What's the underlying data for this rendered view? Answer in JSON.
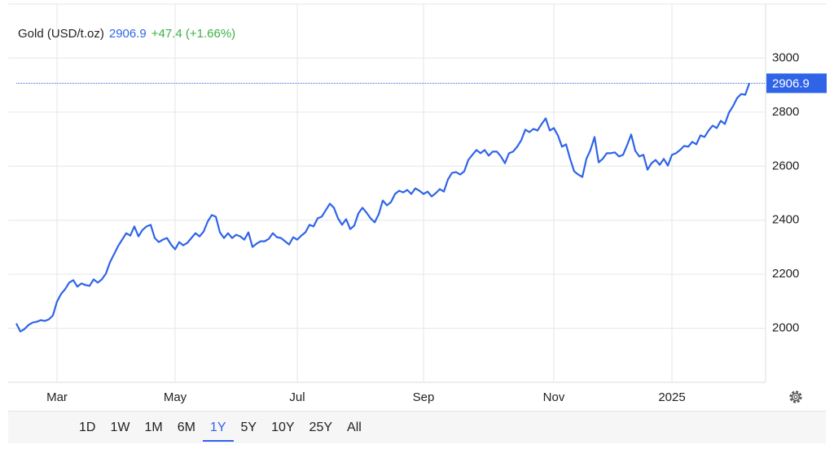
{
  "chart_data": {
    "type": "line",
    "title": "Gold (USD/t.oz)",
    "change": "+47.4 (+1.66%)",
    "color": "#2f64e8",
    "change_color": "#3cb043",
    "categories": [
      null,
      null,
      null,
      null,
      null,
      null,
      null,
      null,
      null,
      null,
      "Mar",
      null,
      null,
      null,
      null,
      null,
      null,
      null,
      null,
      null,
      null,
      null,
      null,
      null,
      null,
      null,
      null,
      null,
      null,
      null,
      null,
      null,
      null,
      null,
      null,
      null,
      null,
      null,
      null,
      "May",
      null,
      null,
      null,
      null,
      null,
      null,
      null,
      null,
      null,
      null,
      null,
      null,
      null,
      null,
      null,
      null,
      null,
      null,
      null,
      null,
      null,
      null,
      null,
      null,
      null,
      null,
      null,
      null,
      null,
      "Jul",
      null,
      null,
      null,
      null,
      null,
      null,
      null,
      null,
      null,
      null,
      null,
      null,
      null,
      null,
      null,
      null,
      null,
      null,
      null,
      null,
      null,
      null,
      null,
      null,
      null,
      null,
      null,
      null,
      null,
      null,
      "Sep",
      null,
      null,
      null,
      null,
      null,
      null,
      null,
      null,
      null,
      null,
      null,
      null,
      null,
      null,
      null,
      null,
      null,
      null,
      null,
      null,
      null,
      null,
      null,
      null,
      null,
      null,
      null,
      null,
      null,
      null,
      null,
      "Nov",
      null,
      null,
      null,
      null,
      null,
      null,
      null,
      null,
      null,
      null,
      null,
      null,
      null,
      null,
      null,
      null,
      null,
      null,
      null,
      null,
      null,
      null,
      null,
      null,
      null,
      null,
      null,
      null,
      "2025",
      null,
      null,
      null,
      null,
      null,
      null,
      null,
      null,
      null,
      null,
      null,
      null,
      null,
      null,
      null,
      null,
      null,
      null,
      null
    ],
    "values": [
      2018,
      1988,
      1997,
      2012,
      2021,
      2024,
      2030,
      2027,
      2033,
      2048,
      2099,
      2127,
      2145,
      2169,
      2178,
      2154,
      2166,
      2160,
      2157,
      2181,
      2169,
      2181,
      2202,
      2244,
      2274,
      2304,
      2328,
      2352,
      2343,
      2377,
      2340,
      2364,
      2377,
      2383,
      2334,
      2319,
      2328,
      2334,
      2310,
      2292,
      2319,
      2307,
      2316,
      2334,
      2352,
      2340,
      2358,
      2395,
      2419,
      2413,
      2355,
      2334,
      2352,
      2334,
      2346,
      2340,
      2328,
      2355,
      2301,
      2313,
      2322,
      2322,
      2331,
      2352,
      2337,
      2334,
      2322,
      2310,
      2337,
      2328,
      2343,
      2355,
      2383,
      2377,
      2407,
      2413,
      2437,
      2461,
      2446,
      2407,
      2383,
      2404,
      2367,
      2380,
      2425,
      2446,
      2428,
      2407,
      2392,
      2422,
      2473,
      2455,
      2467,
      2497,
      2509,
      2503,
      2512,
      2497,
      2518,
      2509,
      2497,
      2506,
      2488,
      2500,
      2515,
      2506,
      2551,
      2575,
      2578,
      2569,
      2581,
      2623,
      2642,
      2660,
      2648,
      2660,
      2639,
      2654,
      2654,
      2636,
      2611,
      2648,
      2654,
      2672,
      2696,
      2735,
      2726,
      2738,
      2732,
      2756,
      2777,
      2732,
      2741,
      2714,
      2672,
      2681,
      2627,
      2581,
      2569,
      2560,
      2627,
      2660,
      2708,
      2614,
      2627,
      2648,
      2648,
      2651,
      2636,
      2642,
      2678,
      2717,
      2657,
      2636,
      2642,
      2587,
      2611,
      2623,
      2605,
      2627,
      2602,
      2642,
      2648,
      2660,
      2675,
      2672,
      2690,
      2681,
      2714,
      2708,
      2732,
      2750,
      2741,
      2768,
      2756,
      2798,
      2822,
      2852,
      2867,
      2864,
      2906.9
    ],
    "ylim": [
      1800,
      3200
    ],
    "yticks": [
      2000,
      2200,
      2400,
      2600,
      2800,
      3000
    ],
    "grid": true
  },
  "controls": {
    "ranges": [
      "1D",
      "1W",
      "1M",
      "6M",
      "1Y",
      "5Y",
      "10Y",
      "25Y",
      "All"
    ],
    "selected": 4
  }
}
